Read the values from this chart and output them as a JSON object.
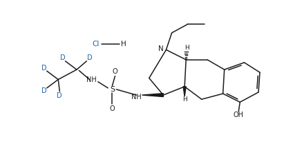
{
  "background_color": "#ffffff",
  "line_color": "#1a1a1a",
  "blue_color": "#2060a0",
  "figsize": [
    4.11,
    2.31
  ],
  "dpi": 100,
  "xlim": [
    0,
    100
  ],
  "ylim": [
    0,
    56
  ]
}
